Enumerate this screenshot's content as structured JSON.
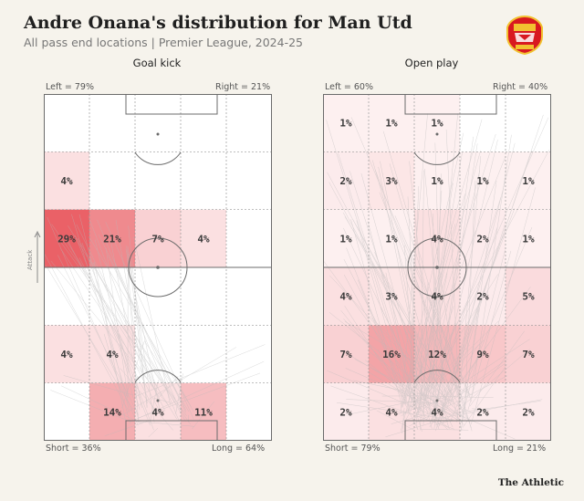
{
  "header": {
    "title": "Andre Onana's distribution for Man Utd",
    "subtitle": "All pass end locations | Premier League, 2024-25",
    "brand": "The Athletic",
    "attack_label": "Attack",
    "logo_icon": "manchester-united-crest-icon"
  },
  "colors": {
    "heat_max": "#e8545a",
    "background": "#f6f3ec",
    "pitch_line": "#6b6b6b",
    "pass_line": "#b9b9b9"
  },
  "chart_data": [
    {
      "type": "heatmap",
      "title": "Goal kick",
      "left": "Left = 79%",
      "right": "Right = 21%",
      "short": "Short = 36%",
      "long": "Long = 64%",
      "grid": [
        [
          "",
          "",
          "",
          "",
          ""
        ],
        [
          "4%",
          "",
          "",
          "",
          ""
        ],
        [
          "29%",
          "21%",
          "7%",
          "4%",
          ""
        ],
        [
          "",
          "",
          "",
          "",
          ""
        ],
        [
          "4%",
          "4%",
          "",
          "",
          ""
        ],
        [
          "",
          "14%",
          "4%",
          "11%",
          ""
        ]
      ],
      "values": [
        [
          0,
          0,
          0,
          0,
          0
        ],
        [
          4,
          0,
          0,
          0,
          0
        ],
        [
          29,
          21,
          7,
          4,
          0
        ],
        [
          0,
          0,
          0,
          0,
          0
        ],
        [
          4,
          4,
          0,
          0,
          0
        ],
        [
          0,
          14,
          4,
          11,
          0
        ]
      ],
      "rows_order": "attacking end at top, own goal at bottom",
      "columns_order": "left to right"
    },
    {
      "type": "heatmap",
      "title": "Open play",
      "left": "Left = 60%",
      "right": "Right = 40%",
      "short": "Short = 79%",
      "long": "Long = 21%",
      "grid": [
        [
          "1%",
          "1%",
          "1%",
          "",
          ""
        ],
        [
          "2%",
          "3%",
          "1%",
          "1%",
          "1%"
        ],
        [
          "1%",
          "1%",
          "4%",
          "2%",
          "1%"
        ],
        [
          "4%",
          "3%",
          "4%",
          "2%",
          "5%"
        ],
        [
          "7%",
          "16%",
          "12%",
          "9%",
          "7%"
        ],
        [
          "2%",
          "4%",
          "4%",
          "2%",
          "2%"
        ]
      ],
      "values": [
        [
          1,
          1,
          1,
          0,
          0
        ],
        [
          2,
          3,
          1,
          1,
          1
        ],
        [
          1,
          1,
          4,
          2,
          1
        ],
        [
          4,
          3,
          4,
          2,
          5
        ],
        [
          7,
          16,
          12,
          9,
          7
        ],
        [
          2,
          4,
          4,
          2,
          2
        ]
      ],
      "rows_order": "attacking end at top, own goal at bottom",
      "columns_order": "left to right"
    }
  ]
}
